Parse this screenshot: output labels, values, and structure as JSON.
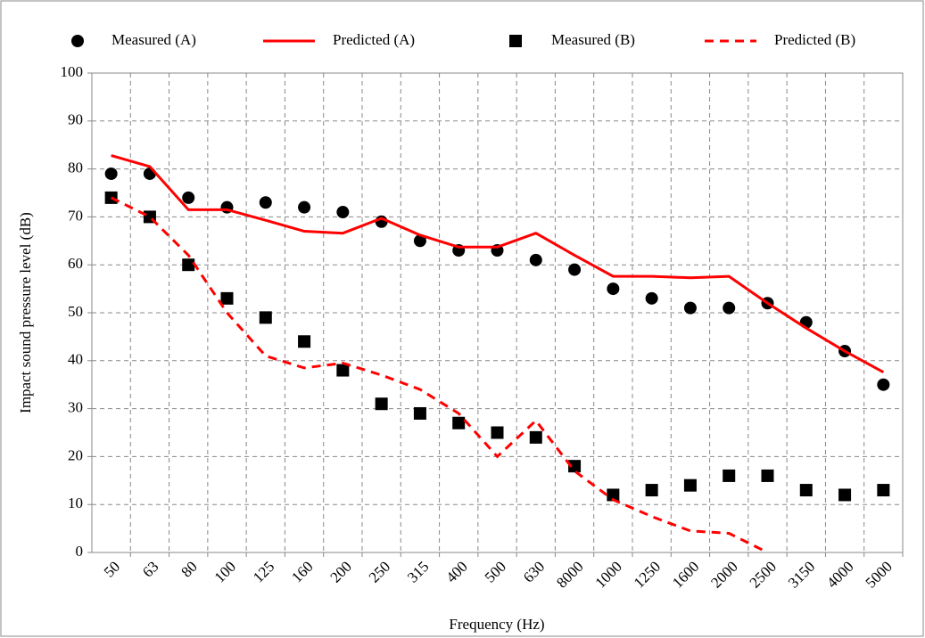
{
  "chart_data": {
    "type": "line",
    "x_label": "Frequency (Hz)",
    "y_label": "Impact sound pressure level (dB)",
    "categories": [
      "50",
      "63",
      "80",
      "100",
      "125",
      "160",
      "200",
      "250",
      "315",
      "400",
      "500",
      "630",
      "8000",
      "1000",
      "1250",
      "1600",
      "2000",
      "2500",
      "3150",
      "4000",
      "5000"
    ],
    "series": [
      {
        "name": "Measured (A)",
        "color": "#000000",
        "marker": "circle",
        "line_style": "none",
        "values": [
          79,
          79,
          74,
          72,
          73,
          72,
          71,
          69,
          65,
          63,
          63,
          61,
          59,
          55,
          53,
          51,
          51,
          52,
          48,
          42,
          35
        ]
      },
      {
        "name": "Predicted (A)",
        "color": "#ff0000",
        "marker": "none",
        "line_style": "solid",
        "values": [
          82.8,
          80.5,
          71.5,
          71.5,
          69.3,
          67,
          66.6,
          69.7,
          66.2,
          63.7,
          63.7,
          66.6,
          62,
          57.6,
          57.6,
          57.3,
          57.6,
          52,
          46.8,
          42,
          37.6
        ]
      },
      {
        "name": "Measured (B)",
        "color": "#000000",
        "marker": "square",
        "line_style": "none",
        "values": [
          74,
          70,
          60,
          53,
          49,
          44,
          38,
          31,
          29,
          27,
          25,
          24,
          18,
          12,
          13,
          14,
          16,
          16,
          13,
          12,
          13
        ]
      },
      {
        "name": "Predicted (B)",
        "color": "#ff0000",
        "marker": "none",
        "line_style": "dashed",
        "values": [
          74,
          70,
          62,
          50,
          41,
          38.5,
          39.5,
          37,
          34,
          29,
          20,
          27.5,
          17,
          11,
          7.5,
          4.5,
          4,
          0,
          null,
          null,
          null
        ]
      }
    ],
    "ylim": [
      0,
      100
    ],
    "yticks": [
      0,
      10,
      20,
      30,
      40,
      50,
      60,
      70,
      80,
      90,
      100
    ],
    "grid": true,
    "legend": "top"
  }
}
